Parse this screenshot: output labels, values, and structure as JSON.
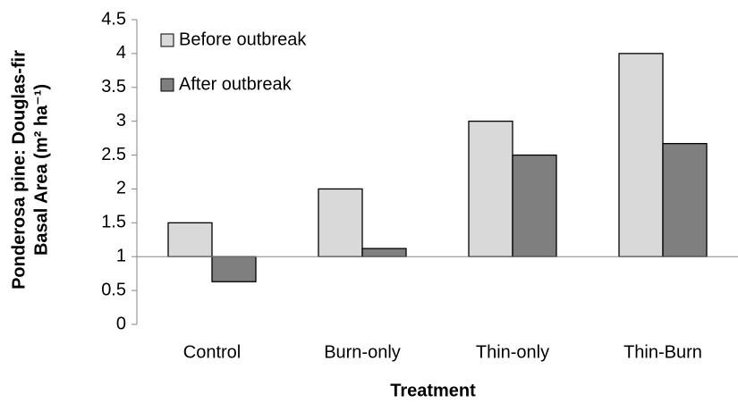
{
  "chart_data": {
    "type": "bar",
    "x_label": "Treatment",
    "y_label": [
      "Ponderosa pine: Douglas-fir",
      "Basal Area (m² ha⁻¹)"
    ],
    "categories": [
      "Control",
      "Burn-only",
      "Thin-only",
      "Thin-Burn"
    ],
    "series": [
      {
        "name": "Before outbreak",
        "color": "#d9d9d9",
        "values": [
          1.5,
          2.0,
          3.0,
          4.0
        ]
      },
      {
        "name": "After outbreak",
        "color": "#7f7f7f",
        "values": [
          0.63,
          1.12,
          2.5,
          2.67
        ]
      }
    ],
    "bar_base": 1,
    "ylim": [
      0,
      4.5
    ],
    "yticks": [
      0,
      0.5,
      1,
      1.5,
      2,
      2.5,
      3,
      3.5,
      4,
      4.5
    ],
    "grid": false,
    "legend": "top-left"
  }
}
